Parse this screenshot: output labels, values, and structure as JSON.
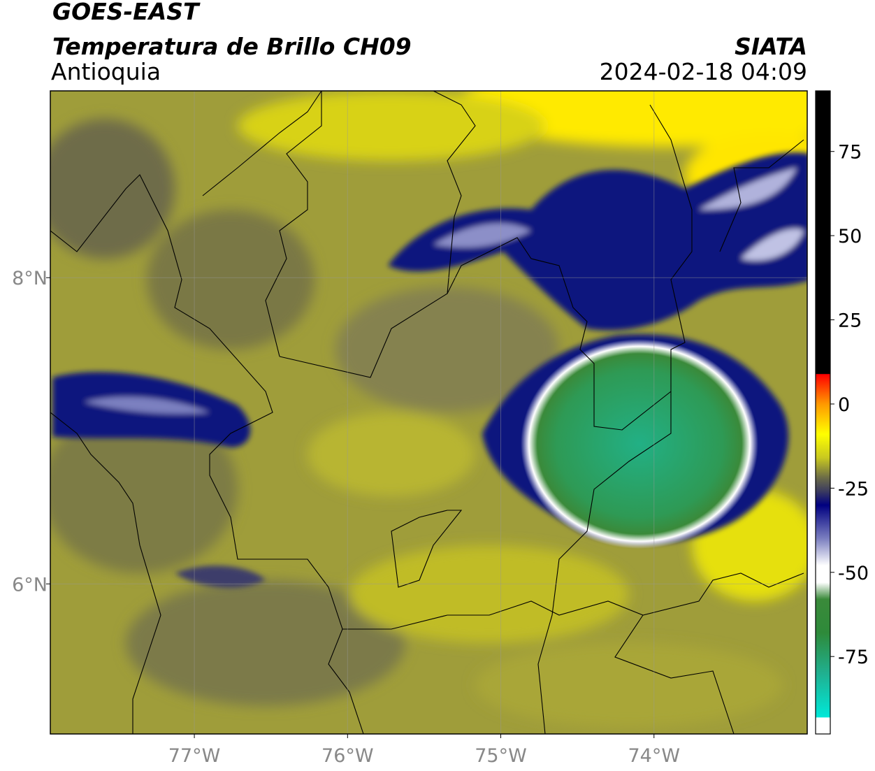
{
  "header": {
    "title": "GOES-EAST",
    "subtitle": "Temperatura de Brillo CH09",
    "region": "Antioquia",
    "source": "SIATA",
    "datetime": "2024-02-18 04:09"
  },
  "map": {
    "lon_range": [
      -77.94,
      -73.0
    ],
    "lat_range": [
      5.02,
      9.22
    ],
    "lon_ticks": [
      {
        "value": -77,
        "label": "77°W"
      },
      {
        "value": -76,
        "label": "76°W"
      },
      {
        "value": -75,
        "label": "75°W"
      },
      {
        "value": -74,
        "label": "74°W"
      }
    ],
    "lat_ticks": [
      {
        "value": 8,
        "label": "8°N"
      },
      {
        "value": 6,
        "label": "6°N"
      }
    ],
    "grid": true
  },
  "colorbar": {
    "range": [
      -98,
      93
    ],
    "ticks": [
      75,
      50,
      25,
      0,
      -25,
      -50,
      -75
    ],
    "stops": [
      {
        "value": -98,
        "color": "#ffffff"
      },
      {
        "value": -93.2,
        "color": "#ffffff"
      },
      {
        "value": -93,
        "color": "#00e8d8"
      },
      {
        "value": -80,
        "color": "#20b090"
      },
      {
        "value": -68,
        "color": "#2e8a3a"
      },
      {
        "value": -58,
        "color": "#3a8a3a"
      },
      {
        "value": -53,
        "color": "#ffffff"
      },
      {
        "value": -48,
        "color": "#ffffff"
      },
      {
        "value": -40,
        "color": "#7b7fc0"
      },
      {
        "value": -30,
        "color": "#000080"
      },
      {
        "value": -26,
        "color": "#3a3a60"
      },
      {
        "value": -22,
        "color": "#6a6a48"
      },
      {
        "value": -16,
        "color": "#c8c820"
      },
      {
        "value": -9,
        "color": "#ffff00"
      },
      {
        "value": 0,
        "color": "#ff9900"
      },
      {
        "value": 8.8,
        "color": "#ff0000"
      },
      {
        "value": 9,
        "color": "#000000"
      },
      {
        "value": 93,
        "color": "#000000"
      }
    ]
  }
}
